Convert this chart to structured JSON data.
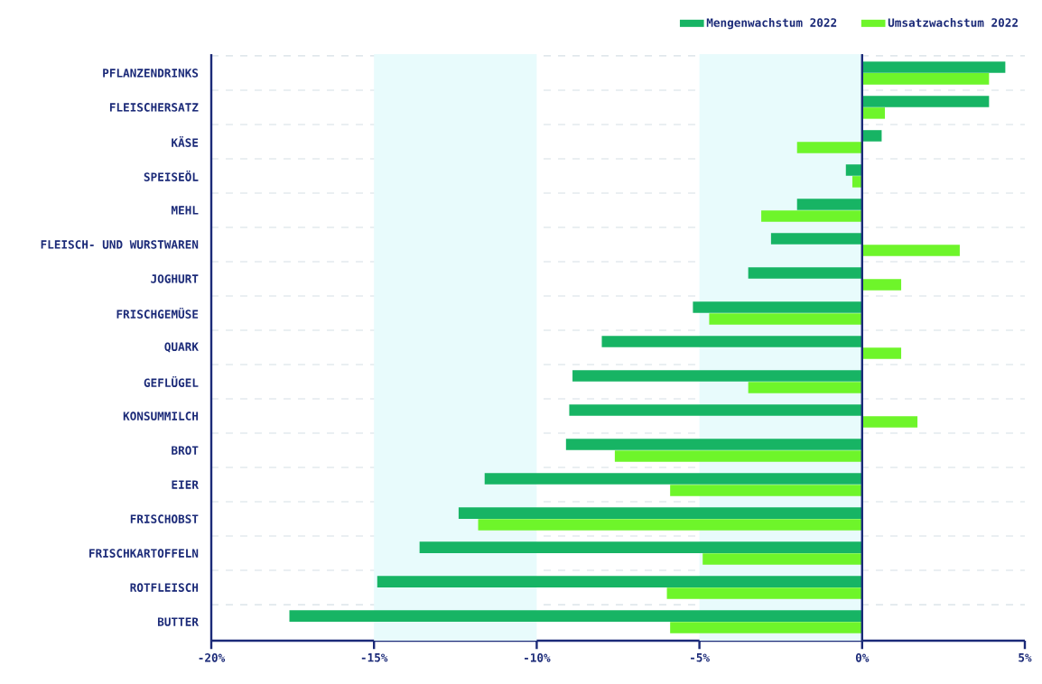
{
  "chart_data": {
    "type": "bar",
    "orientation": "horizontal",
    "categories": [
      "PFLANZENDRINKS",
      "FLEISCHERSATZ",
      "KÄSE",
      "SPEISEÖL",
      "MEHL",
      "FLEISCH- UND WURSTWAREN",
      "JOGHURT",
      "FRISCHGEMÜSE",
      "QUARK",
      "GEFLÜGEL",
      "KONSUMMILCH",
      "BROT",
      "EIER",
      "FRISCHOBST",
      "FRISCHKARTOFFELN",
      "ROTFLEISCH",
      "BUTTER"
    ],
    "series": [
      {
        "name": "Mengenwachstum 2022",
        "color": "#17b464",
        "values": [
          4.4,
          3.9,
          0.6,
          -0.5,
          -2.0,
          -2.8,
          -3.5,
          -5.2,
          -8.0,
          -8.9,
          -9.0,
          -9.1,
          -11.6,
          -12.4,
          -13.6,
          -14.9,
          -17.6
        ]
      },
      {
        "name": "Umsatzwachstum 2022",
        "color": "#6ef52a",
        "values": [
          3.9,
          0.7,
          -2.0,
          -0.3,
          -3.1,
          3.0,
          1.2,
          -4.7,
          1.2,
          -3.5,
          1.7,
          -7.6,
          -5.9,
          -11.8,
          -4.9,
          -6.0,
          -5.9
        ]
      }
    ],
    "xlim": [
      -20,
      5
    ],
    "xticks": [
      {
        "value": -20,
        "label": "-20%"
      },
      {
        "value": -15,
        "label": "-15%"
      },
      {
        "value": -10,
        "label": "-10%"
      },
      {
        "value": -5,
        "label": "-5%"
      },
      {
        "value": 0,
        "label": "0%"
      },
      {
        "value": 5,
        "label": "5%"
      }
    ],
    "bands": [
      {
        "axis": "x",
        "from": -15,
        "to": -10,
        "color": "#e8fbfc"
      },
      {
        "axis": "x",
        "from": -5,
        "to": 0,
        "color": "#e8fbfc"
      }
    ],
    "ref_lines": [
      {
        "axis": "x",
        "value": 0,
        "color": "#1b2a78"
      }
    ],
    "grid": "y",
    "legend": "top right"
  }
}
